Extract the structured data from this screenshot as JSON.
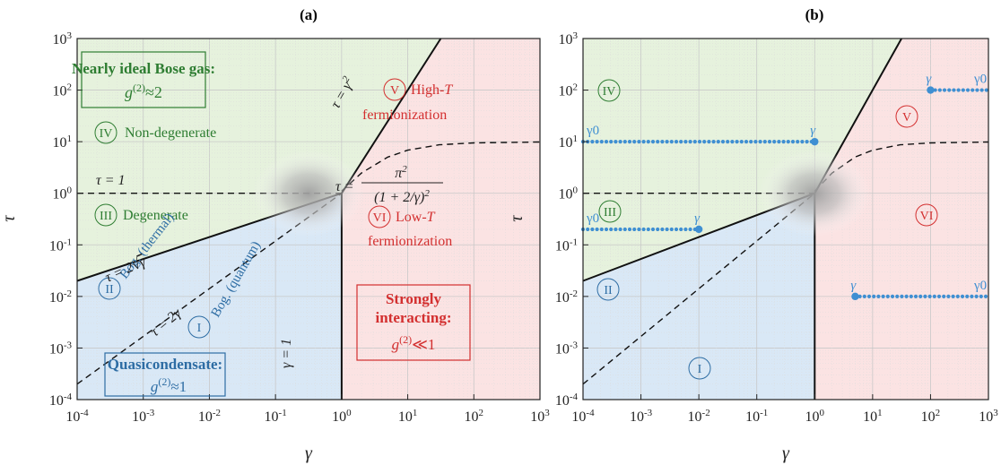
{
  "colors": {
    "green_region": "#e6f2dd",
    "blue_region": "#d9e8f6",
    "red_region": "#fbe3e3",
    "green_text": "#2e7d32",
    "blue_text": "#2e6da4",
    "red_text": "#d32f2f",
    "path_color": "#3f8fd2"
  },
  "chart_data": [
    {
      "type": "area",
      "panel": "(a)",
      "xlabel": "γ",
      "ylabel": "τ",
      "xscale": "log",
      "yscale": "log",
      "xlim": [
        0.0001,
        1000
      ],
      "ylim": [
        0.0001,
        1000
      ],
      "x_ticks": [
        "10-4",
        "10-3",
        "10-2",
        "10-1",
        "100",
        "101",
        "102",
        "103"
      ],
      "y_ticks": [
        "10-4",
        "10-3",
        "10-2",
        "10-1",
        "100",
        "101",
        "102",
        "103"
      ],
      "grid": true,
      "regions": [
        {
          "id": "I",
          "label": "Bog. (quantum)"
        },
        {
          "id": "II",
          "label": "Bog. (thermal)"
        },
        {
          "id": "III",
          "label": "Degenerate"
        },
        {
          "id": "IV",
          "label": "Non-degenerate"
        },
        {
          "id": "V",
          "label": "High-T fermionization"
        },
        {
          "id": "VI",
          "label": "Low-T fermionization"
        }
      ],
      "boxes": [
        {
          "title": "Nearly ideal Bose gas:",
          "formula": "g(2)≈2"
        },
        {
          "title": "Quasicondensate:",
          "formula": "g(2)≈1"
        },
        {
          "title": "Strongly interacting:",
          "formula": "g(2)≪1"
        }
      ],
      "curve_labels": [
        "τ = γ2",
        "τ = 1",
        "τ = 2√γ",
        "τ = 2γ",
        "γ = 1",
        "τ = π2 / (1+2/γ)2"
      ],
      "series": [
        {
          "style": "solid",
          "x": [
            0.0001,
            1
          ],
          "y": [
            0.02,
            1
          ]
        },
        {
          "style": "solid",
          "x": [
            1,
            31.6
          ],
          "y": [
            1,
            1000
          ]
        },
        {
          "style": "solid",
          "x": [
            1,
            1
          ],
          "y": [
            0.0001,
            1
          ]
        },
        {
          "style": "dashed",
          "x": [
            0.0001,
            1
          ],
          "y": [
            0.0002,
            1
          ]
        },
        {
          "style": "dashed",
          "x": [
            0.0001,
            1
          ],
          "y": [
            1,
            1
          ]
        },
        {
          "style": "dashed",
          "x": [
            1,
            2,
            5,
            10,
            30,
            100,
            1000
          ],
          "y": [
            1.1,
            2.47,
            5.04,
            6.85,
            8.72,
            9.49,
            9.85
          ]
        }
      ]
    },
    {
      "type": "area",
      "panel": "(b)",
      "xlabel": "γ",
      "ylabel": "τ",
      "xscale": "log",
      "yscale": "log",
      "xlim": [
        0.0001,
        1000
      ],
      "ylim": [
        0.0001,
        1000
      ],
      "x_ticks": [
        "10-4",
        "10-3",
        "10-2",
        "10-1",
        "100",
        "101",
        "102",
        "103"
      ],
      "y_ticks": [
        "10-4",
        "10-3",
        "10-2",
        "10-1",
        "100",
        "101",
        "102",
        "103"
      ],
      "grid": true,
      "regions": [
        {
          "id": "I"
        },
        {
          "id": "II"
        },
        {
          "id": "III"
        },
        {
          "id": "IV"
        },
        {
          "id": "V"
        },
        {
          "id": "VI"
        }
      ],
      "paths": [
        {
          "start_label": "γ0",
          "end_label": "γ",
          "tau": 10,
          "gamma_start": 0.0001,
          "gamma_end": 1
        },
        {
          "start_label": "γ0",
          "end_label": "γ",
          "tau": 0.2,
          "gamma_start": 0.0001,
          "gamma_end": 0.01
        },
        {
          "start_label": "γ0",
          "end_label": "γ",
          "tau": 100,
          "gamma_start": 1000,
          "gamma_end": 100
        },
        {
          "start_label": "γ0",
          "end_label": "γ",
          "tau": 0.01,
          "gamma_start": 1000,
          "gamma_end": 5
        }
      ]
    }
  ],
  "panels": {
    "a": {
      "title": "(a)",
      "box_ideal_title": "Nearly ideal Bose gas:",
      "box_quasi_title": "Quasicondensate:",
      "box_strong_title1": "Strongly",
      "box_strong_title2": "interacting:",
      "reg_I": "I",
      "reg_II": "II",
      "reg_III": "III",
      "reg_IV": "IV",
      "reg_V": "V",
      "reg_VI": "VI",
      "lab_I": "Bog. (quantum)",
      "lab_II": "Bog. (thermal)",
      "lab_III": "Degenerate",
      "lab_IV": "Non-degenerate",
      "lab_V1": "High-",
      "lab_V_T": "T",
      "lab_V2": "fermionization",
      "lab_VI1": "Low-",
      "lab_VI_T": "T",
      "lab_VI2": "fermionization",
      "eq_tau_eq_1": "τ = 1",
      "eq_gamma_eq_1": "γ = 1"
    },
    "b": {
      "title": "(b)",
      "reg_I": "I",
      "reg_II": "II",
      "reg_III": "III",
      "reg_IV": "IV",
      "reg_V": "V",
      "reg_VI": "VI",
      "g0": "γ0",
      "g": "γ"
    }
  }
}
